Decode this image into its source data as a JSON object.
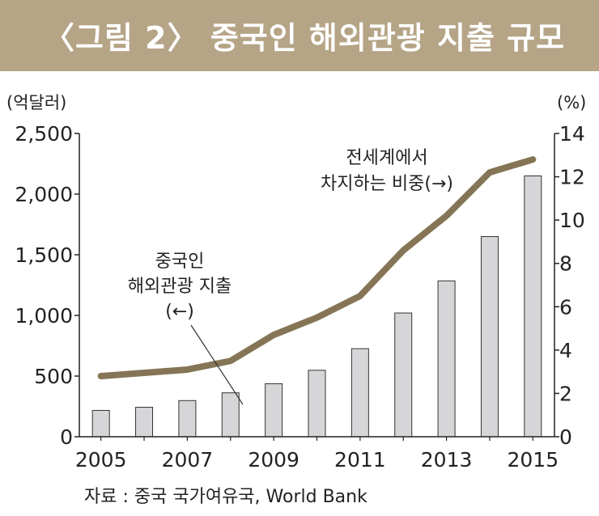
{
  "header": {
    "title": "〈그림 2〉 중국인 해외관광 지출 규모"
  },
  "chart_data": {
    "type": "bar",
    "title": "중국인 해외관광 지출 규모",
    "left_unit": "(억달러)",
    "right_unit": "(%)",
    "categories": [
      "2005",
      "2006",
      "2007",
      "2008",
      "2009",
      "2010",
      "2011",
      "2012",
      "2013",
      "2014",
      "2015"
    ],
    "x_tick_labels": [
      "2005",
      "2007",
      "2009",
      "2011",
      "2013",
      "2015"
    ],
    "left_ylim": [
      0,
      2500
    ],
    "left_ticks": [
      0,
      500,
      1000,
      1500,
      2000,
      2500
    ],
    "left_tick_labels": [
      "0",
      "500",
      "1,000",
      "1,500",
      "2,000",
      "2,500"
    ],
    "right_ylim": [
      0,
      14
    ],
    "right_ticks": [
      0,
      2,
      4,
      6,
      8,
      10,
      12,
      14
    ],
    "series": [
      {
        "name": "중국인 해외관광 지출(←)",
        "type": "bar",
        "axis": "left",
        "values": [
          217,
          243,
          298,
          362,
          437,
          548,
          726,
          1020,
          1285,
          1650,
          2150
        ]
      },
      {
        "name": "전세계에서 차지하는 비중(→)",
        "type": "line",
        "axis": "right",
        "values": [
          2.8,
          2.95,
          3.1,
          3.5,
          4.7,
          5.5,
          6.5,
          8.6,
          10.2,
          12.2,
          12.8
        ]
      }
    ],
    "annotations": {
      "bar_label": [
        "중국인",
        "해외관광 지출",
        "(←)"
      ],
      "line_label": [
        "전세계에서",
        "차지하는 비중(→)"
      ]
    },
    "colors": {
      "bar_fill": "#d6d6d8",
      "bar_stroke": "#333333",
      "line": "#857556"
    },
    "grid": false
  },
  "source": "자료 : 중국 국가여유국,  World Bank"
}
